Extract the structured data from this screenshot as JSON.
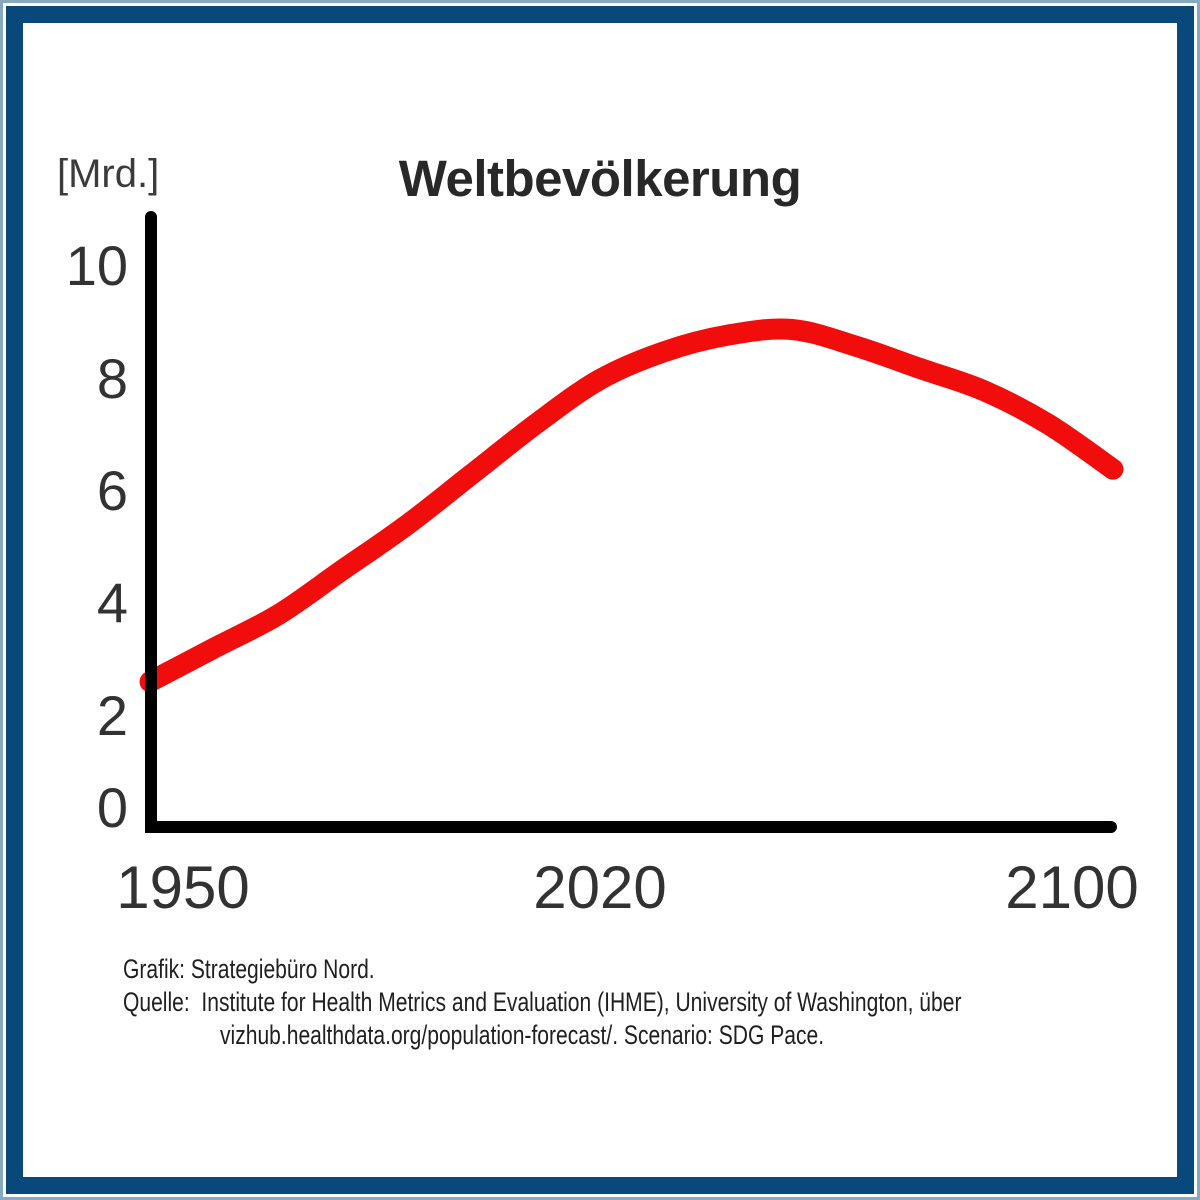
{
  "frame": {
    "border_color": "#09487a",
    "edge_color": "#86a9c2"
  },
  "header": {
    "title": "Weltbevölkerung",
    "unit_label": "[Mrd.]"
  },
  "chart_data": {
    "type": "line",
    "title": "Weltbevölkerung",
    "xlabel": "",
    "ylabel": "[Mrd.]",
    "x": [
      1950,
      1960,
      1970,
      1980,
      1990,
      2000,
      2010,
      2020,
      2030,
      2040,
      2050,
      2060,
      2070,
      2080,
      2090,
      2100
    ],
    "series": [
      {
        "name": "Weltbevölkerung",
        "color": "#f20d0d",
        "values": [
          2.6,
          3.2,
          3.8,
          4.6,
          5.4,
          6.3,
          7.2,
          8.0,
          8.5,
          8.8,
          8.9,
          8.6,
          8.2,
          7.8,
          7.2,
          6.4
        ]
      }
    ],
    "xticks": [
      "1950",
      "2020",
      "2100"
    ],
    "yticks": [
      "0",
      "2",
      "4",
      "6",
      "8",
      "10"
    ],
    "xlim": [
      1950,
      2100
    ],
    "ylim": [
      0,
      11
    ],
    "grid": false,
    "legend_position": "none",
    "axis_color": "#000000"
  },
  "footer": {
    "credit": "Grafik: Strategiebüro Nord.",
    "source_line1": "Quelle:  Institute for Health Metrics and Evaluation (IHME), University of Washington, über",
    "source_line2": "vizhub.healthdata.org/population-forecast/. Scenario: SDG Pace."
  }
}
